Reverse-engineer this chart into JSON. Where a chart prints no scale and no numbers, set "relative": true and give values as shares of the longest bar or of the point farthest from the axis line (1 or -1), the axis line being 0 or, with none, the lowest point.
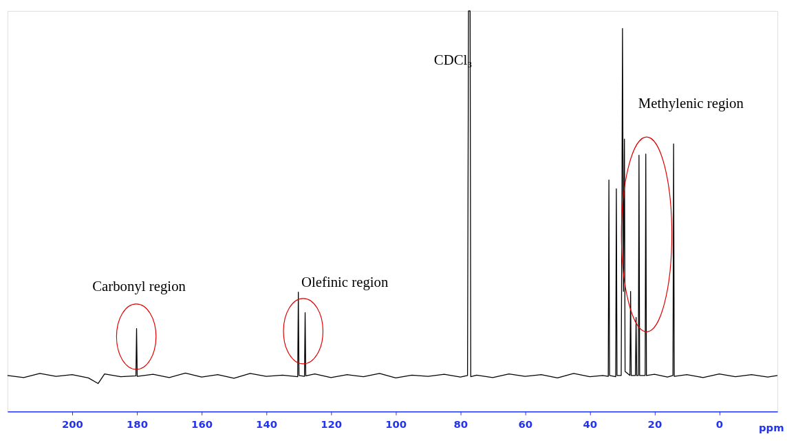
{
  "chart_data": {
    "type": "line",
    "relative": true,
    "xlabel": "ppm",
    "xlim": [
      220,
      -18
    ],
    "xticks": [
      200,
      180,
      160,
      140,
      120,
      100,
      80,
      60,
      40,
      20,
      0
    ],
    "tick_labels": "x",
    "grid": false,
    "legend": false,
    "marker": "none",
    "line_style": "solid",
    "annotations": [
      "Carbonyl region",
      "Olefinic region",
      "Methylenic region",
      "CDCl₃"
    ],
    "series": [
      {
        "color": "#000000",
        "x": [
          220,
          215,
          210,
          205,
          200,
          195,
          192,
          190,
          185,
          180.3,
          180.1,
          179.9,
          175,
          170,
          165,
          160,
          155,
          150,
          145,
          140,
          135,
          130.3,
          130.1,
          129.9,
          128.2,
          128.0,
          127.8,
          125,
          120,
          115,
          110,
          105,
          100,
          95,
          90,
          85,
          80,
          77.8,
          77.5,
          77.3,
          77.0,
          76.8,
          75,
          70,
          65,
          60,
          55,
          50,
          45,
          40,
          36,
          34.3,
          34.1,
          33.9,
          32.0,
          31.8,
          31.6,
          30.3,
          30.1,
          29.9,
          29.6,
          29.3,
          29.1,
          27.6,
          27.4,
          27.2,
          25.9,
          25.7,
          25.5,
          25.0,
          24.8,
          24.6,
          22.9,
          22.7,
          22.5,
          20,
          16,
          14.3,
          14.1,
          13.9,
          10,
          5,
          0,
          -5,
          -10,
          -15,
          -18
        ],
        "values": [
          0.09,
          0.085,
          0.095,
          0.088,
          0.092,
          0.084,
          0.07,
          0.094,
          0.087,
          0.089,
          0.207,
          0.088,
          0.093,
          0.085,
          0.096,
          0.086,
          0.092,
          0.083,
          0.095,
          0.088,
          0.091,
          0.087,
          0.298,
          0.09,
          0.088,
          0.247,
          0.089,
          0.094,
          0.085,
          0.092,
          0.087,
          0.095,
          0.084,
          0.091,
          0.088,
          0.093,
          0.086,
          0.09,
          1.0,
          1.0,
          1.0,
          0.087,
          0.091,
          0.085,
          0.094,
          0.088,
          0.092,
          0.084,
          0.095,
          0.087,
          0.09,
          0.088,
          0.578,
          0.09,
          0.087,
          0.556,
          0.09,
          0.09,
          0.48,
          0.956,
          0.3,
          0.68,
          0.1,
          0.09,
          0.3,
          0.09,
          0.09,
          0.235,
          0.09,
          0.09,
          0.64,
          0.09,
          0.09,
          0.643,
          0.09,
          0.093,
          0.086,
          0.09,
          0.668,
          0.088,
          0.092,
          0.085,
          0.094,
          0.087,
          0.092,
          0.086,
          0.09
        ]
      }
    ]
  }
}
